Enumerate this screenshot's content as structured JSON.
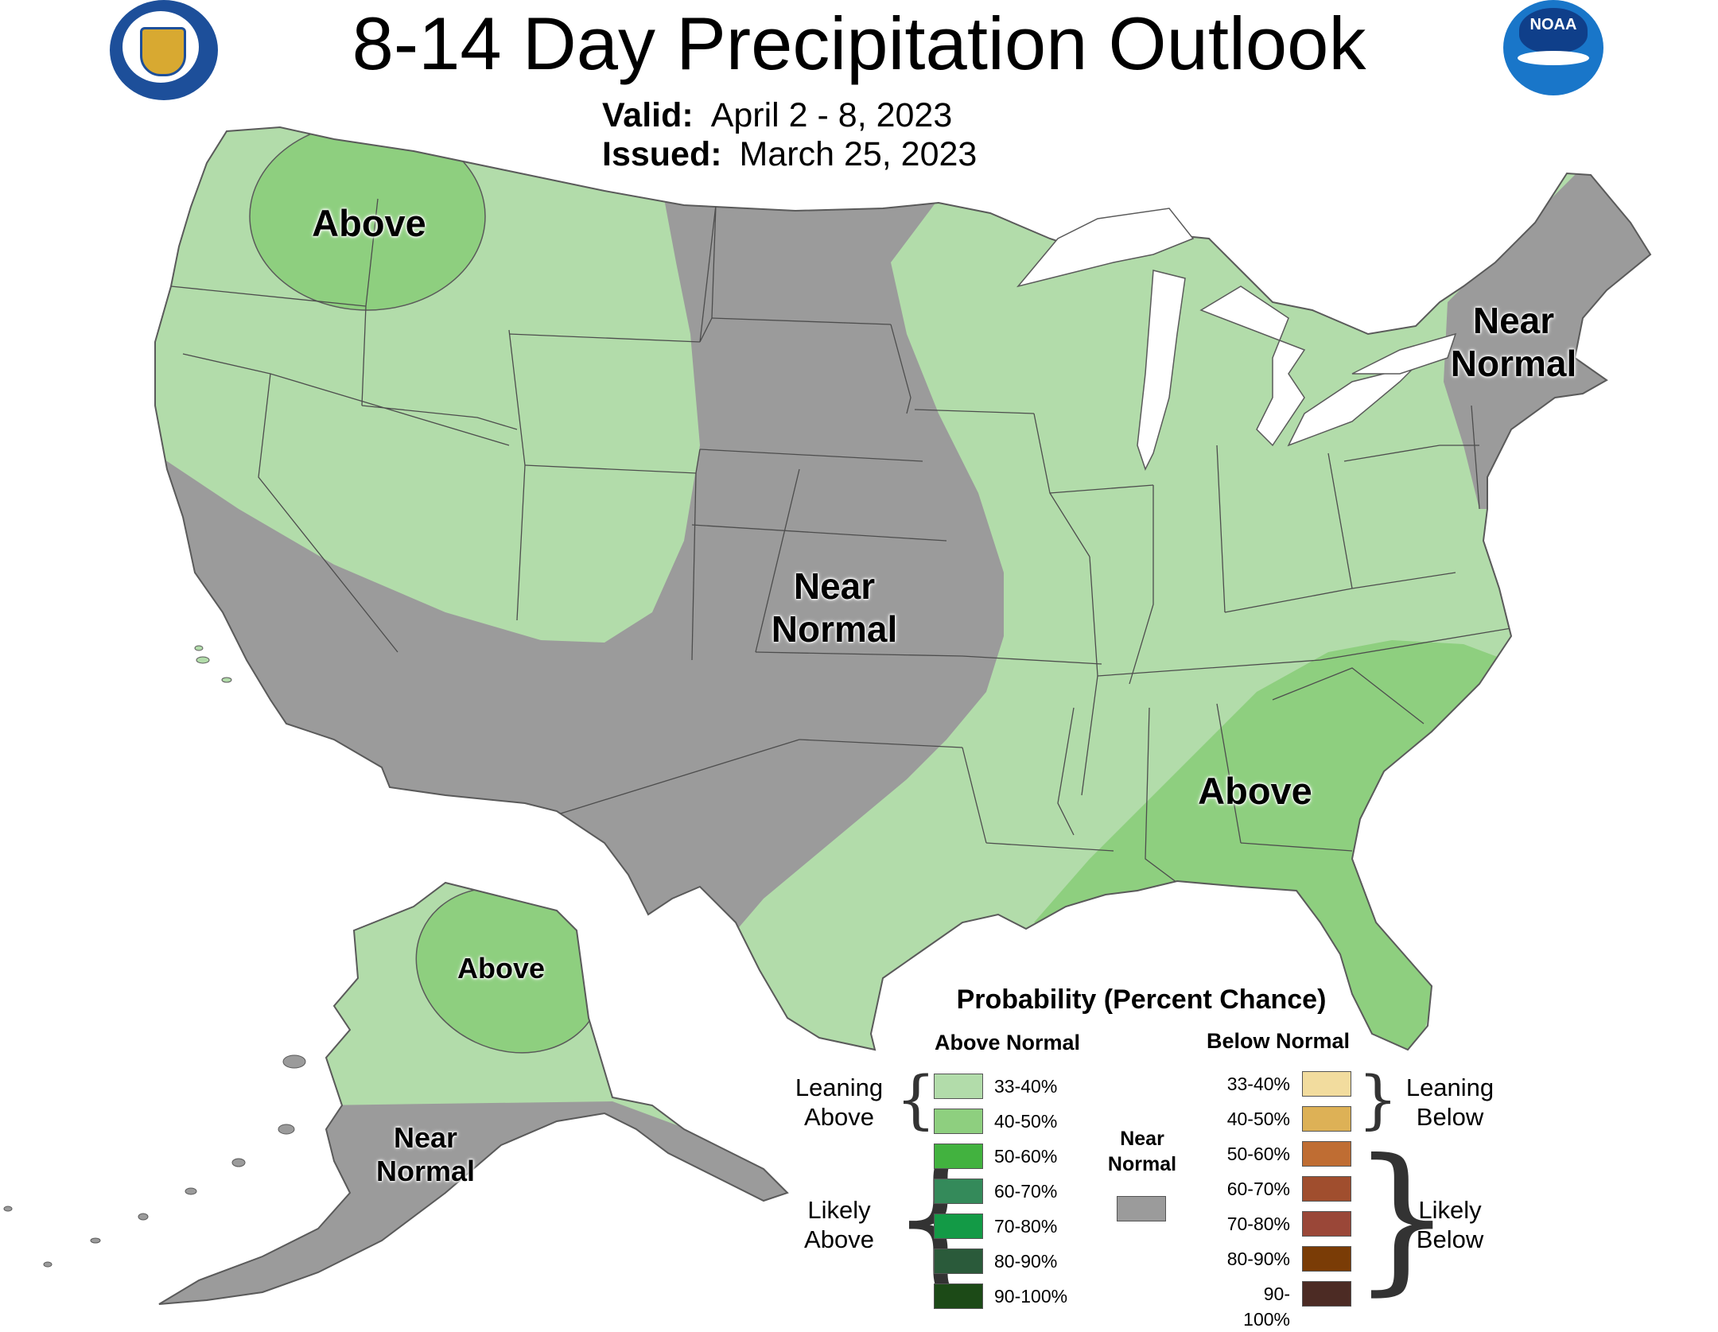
{
  "title": "8-14 Day Precipitation Outlook",
  "valid_label": "Valid:",
  "valid_value": "April 2 - 8, 2023",
  "issued_label": "Issued:",
  "issued_value": "March 25, 2023",
  "logos": {
    "left": "department-of-commerce-seal",
    "right": "noaa-logo",
    "right_text": "NOAA"
  },
  "regions": [
    {
      "label_line1": "Above",
      "label_line2": "",
      "category": "above",
      "probability": "33-40% / 40-50%"
    },
    {
      "label_line1": "Near",
      "label_line2": "Normal",
      "category": "near-normal"
    },
    {
      "label_line1": "Near",
      "label_line2": "Normal",
      "category": "near-normal"
    },
    {
      "label_line1": "Above",
      "label_line2": "",
      "category": "above"
    },
    {
      "label_line1": "Above",
      "label_line2": "",
      "category": "above"
    },
    {
      "label_line1": "Near",
      "label_line2": "Normal",
      "category": "near-normal"
    }
  ],
  "colors": {
    "above_33_40": "#b2dcaa",
    "above_40_50": "#8ecf7f",
    "near_normal": "#9b9b9b",
    "land_outline": "#5a5a5a",
    "lakes": "#ffffff"
  },
  "legend": {
    "title": "Probability (Percent Chance)",
    "above_header": "Above Normal",
    "below_header": "Below Normal",
    "leaning_above": [
      "Leaning",
      "Above"
    ],
    "likely_above": [
      "Likely",
      "Above"
    ],
    "leaning_below": [
      "Leaning",
      "Below"
    ],
    "likely_below": [
      "Likely",
      "Below"
    ],
    "near_normal": [
      "Near",
      "Normal"
    ],
    "above": [
      {
        "label": "33-40%",
        "color": "#b2dcaa"
      },
      {
        "label": "40-50%",
        "color": "#8ecf7f"
      },
      {
        "label": "50-60%",
        "color": "#42b23f"
      },
      {
        "label": "60-70%",
        "color": "#348a5a"
      },
      {
        "label": "70-80%",
        "color": "#139a46"
      },
      {
        "label": "80-90%",
        "color": "#2a5a3a"
      },
      {
        "label": "90-100%",
        "color": "#1c4a17"
      }
    ],
    "below": [
      {
        "label": "33-40%",
        "color": "#f2dc9e"
      },
      {
        "label": "40-50%",
        "color": "#ddb156"
      },
      {
        "label": "50-60%",
        "color": "#bf6d33"
      },
      {
        "label": "60-70%",
        "color": "#a04e2e"
      },
      {
        "label": "70-80%",
        "color": "#9a4738"
      },
      {
        "label": "80-90%",
        "color": "#7a3c06"
      },
      {
        "label": "90-100%",
        "color": "#4c2b24"
      }
    ],
    "near_normal_color": "#9b9b9b"
  }
}
